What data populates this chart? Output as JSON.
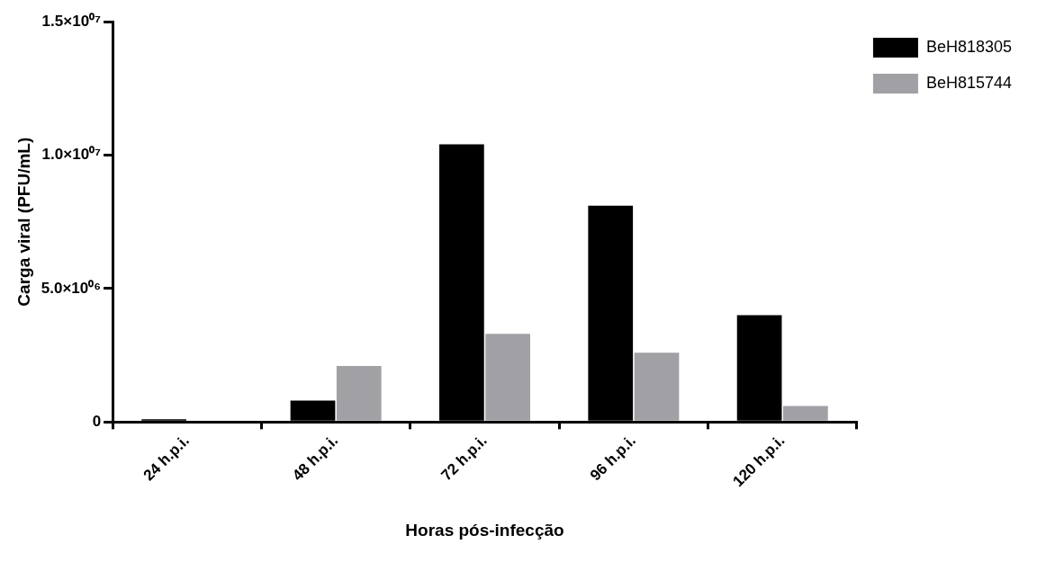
{
  "chart_data": {
    "type": "bar",
    "xlabel": "Horas pós-infecção",
    "ylabel": "Carga viral (PFU/mL)",
    "categories": [
      "24 h.p.i.",
      "48 h.p.i.",
      "72 h.p.i.",
      "96 h.p.i.",
      "120 h.p.i."
    ],
    "series": [
      {
        "name": "BeH818305",
        "color": "#000000",
        "values": [
          100000,
          800000,
          10400000,
          8100000,
          4000000
        ]
      },
      {
        "name": "BeH815744",
        "color": "#a1a0a5",
        "values": [
          0,
          2100000,
          3300000,
          2600000,
          600000
        ]
      }
    ],
    "ylim": [
      0,
      15000000
    ],
    "yticks": [
      {
        "value": 0,
        "label": "0"
      },
      {
        "value": 5000000,
        "label": "5.0×10⁰⁶"
      },
      {
        "value": 10000000,
        "label": "1.0×10⁰⁷"
      },
      {
        "value": 15000000,
        "label": "1.5×10⁰⁷"
      }
    ],
    "grid": false,
    "legend": "top right"
  }
}
